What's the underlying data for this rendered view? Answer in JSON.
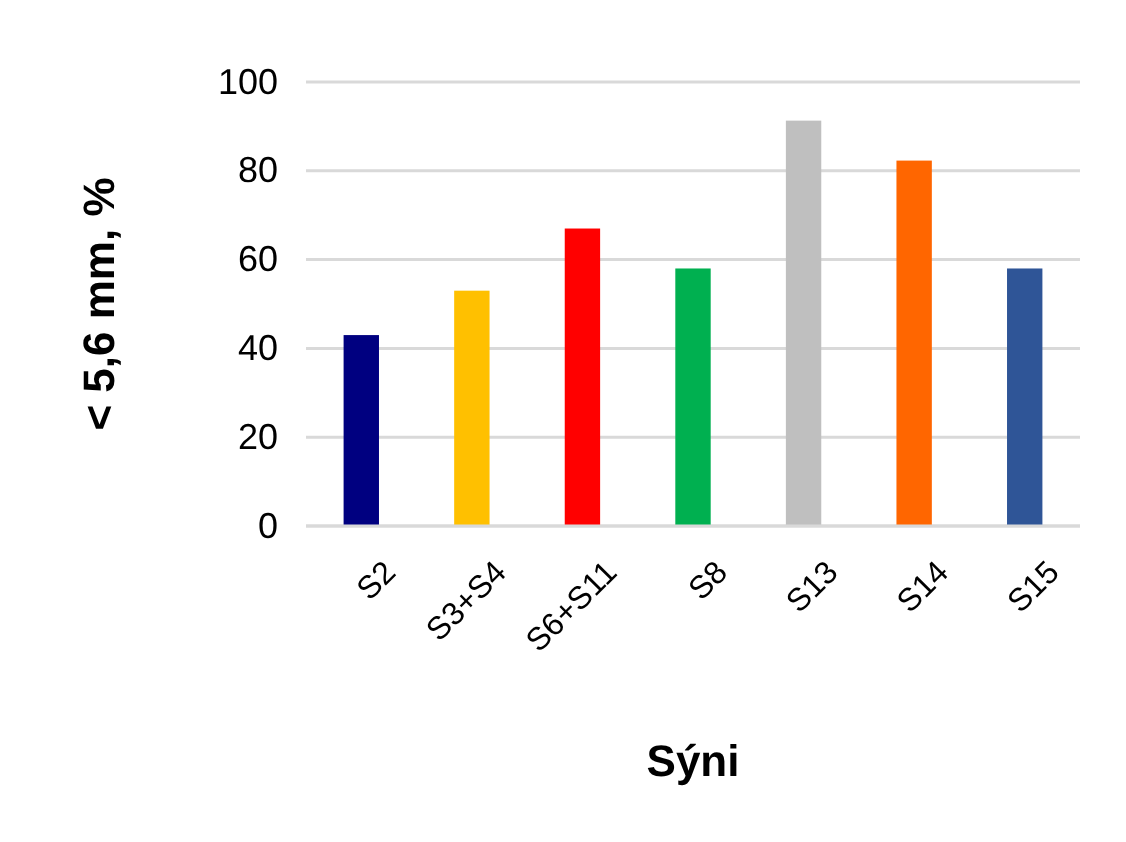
{
  "chart_data": {
    "type": "bar",
    "xlabel": "Sýni",
    "ylabel": "< 5,6 mm, %",
    "categories": [
      "S2",
      "S3+S4",
      "S6+S11",
      "S8",
      "S13",
      "S14",
      "S15"
    ],
    "values": [
      43,
      53,
      67,
      58,
      91.3,
      82.3,
      58
    ],
    "colors": [
      "#000080",
      "#ffc000",
      "#ff0000",
      "#00b050",
      "#bfbfbf",
      "#ff6600",
      "#2f5597"
    ],
    "ylim": [
      0,
      100
    ],
    "yticks": [
      0,
      20,
      40,
      60,
      80,
      100
    ],
    "grid": "y"
  }
}
